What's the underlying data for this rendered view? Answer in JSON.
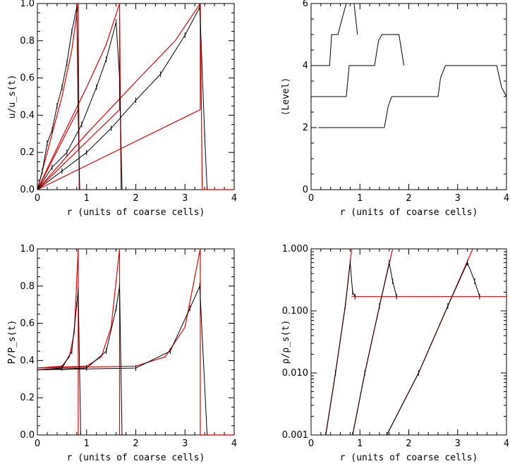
{
  "colors": {
    "simulation": "#000000",
    "analytic": "#e00000"
  },
  "chart_data": [
    {
      "type": "line",
      "xlabel": "r (units of coarse cells)",
      "ylabel": "u/u_s(t)",
      "xlim": [
        0,
        4
      ],
      "ylim": [
        0,
        1
      ],
      "xticks": [
        "0",
        "1",
        "2",
        "3",
        "4"
      ],
      "yticks": [
        "0.0",
        "0.2",
        "0.4",
        "0.6",
        "0.8",
        "1.0"
      ],
      "ytick_values": [
        0,
        0.2,
        0.4,
        0.6,
        0.8,
        1.0
      ],
      "shock_radii": [
        0.83,
        1.67,
        3.31
      ],
      "series": [
        {
          "role": "analytic",
          "x": [
            0,
            0.83,
            0.83,
            0.85
          ],
          "y": [
            0,
            0.43,
            1.0,
            0
          ]
        },
        {
          "role": "analytic",
          "x": [
            0,
            1.67,
            1.67,
            1.7
          ],
          "y": [
            0,
            0.43,
            1.0,
            0
          ]
        },
        {
          "role": "analytic",
          "x": [
            0,
            3.31,
            3.31,
            3.35,
            4.0
          ],
          "y": [
            0,
            0.43,
            1.0,
            0,
            0
          ]
        },
        {
          "role": "analytic",
          "x": [
            0,
            0.3,
            0.5,
            0.7,
            0.83
          ],
          "y": [
            0,
            0.3,
            0.5,
            0.75,
            1.0
          ]
        },
        {
          "role": "analytic",
          "x": [
            0,
            0.5,
            1.0,
            1.4,
            1.67
          ],
          "y": [
            0,
            0.28,
            0.55,
            0.78,
            1.0
          ]
        },
        {
          "role": "analytic",
          "x": [
            0,
            1.0,
            2.0,
            2.8,
            3.31
          ],
          "y": [
            0,
            0.3,
            0.58,
            0.8,
            1.0
          ]
        },
        {
          "role": "simulation",
          "x": [
            0,
            0.1,
            0.2,
            0.3,
            0.4,
            0.5,
            0.6,
            0.7,
            0.8,
            0.83,
            0.86
          ],
          "y": [
            0,
            0.1,
            0.25,
            0.32,
            0.45,
            0.55,
            0.68,
            0.85,
            0.98,
            0.4,
            0
          ]
        },
        {
          "role": "simulation",
          "x": [
            0,
            0.3,
            0.6,
            0.9,
            1.2,
            1.4,
            1.6,
            1.67,
            1.72
          ],
          "y": [
            0,
            0.12,
            0.2,
            0.35,
            0.55,
            0.7,
            0.9,
            0.6,
            0
          ]
        },
        {
          "role": "simulation",
          "x": [
            0,
            0.5,
            1.0,
            1.5,
            2.0,
            2.5,
            3.0,
            3.3,
            3.4,
            3.45
          ],
          "y": [
            0,
            0.1,
            0.2,
            0.33,
            0.48,
            0.62,
            0.83,
            0.98,
            0.3,
            0
          ]
        }
      ]
    },
    {
      "type": "line",
      "xlabel": "r (units of coarse cells)",
      "ylabel": "⟨Level⟩",
      "xlim": [
        0,
        4
      ],
      "ylim": [
        0,
        6
      ],
      "xticks": [
        "0",
        "1",
        "2",
        "3",
        "4"
      ],
      "yticks": [
        "0",
        "2",
        "4",
        "6"
      ],
      "ytick_values": [
        0,
        2,
        4,
        6
      ],
      "series": [
        {
          "role": "simulation",
          "x": [
            0,
            0.38,
            0.42,
            0.48,
            0.55,
            0.65,
            0.72,
            0.8,
            0.88,
            0.95
          ],
          "y": [
            4,
            4,
            5,
            5,
            5,
            5.6,
            6,
            6,
            6,
            5
          ]
        },
        {
          "role": "simulation",
          "x": [
            0,
            0.72,
            0.78,
            0.85,
            1.3,
            1.38,
            1.45,
            1.6,
            1.8,
            1.9
          ],
          "y": [
            3,
            3,
            4,
            4,
            4,
            4.8,
            5,
            5,
            5,
            4
          ]
        },
        {
          "role": "simulation",
          "x": [
            0.15,
            1.5,
            1.58,
            1.65,
            1.75,
            2.6,
            2.65,
            2.75,
            3.5,
            3.8,
            3.9,
            4.0
          ],
          "y": [
            2,
            2,
            2.7,
            3,
            3,
            3,
            3.6,
            4,
            4,
            4,
            3.3,
            3
          ]
        }
      ]
    },
    {
      "type": "line",
      "xlabel": "r (units of coarse cells)",
      "ylabel": "P/P_s(t)",
      "xlim": [
        0,
        4
      ],
      "ylim": [
        0,
        1
      ],
      "xticks": [
        "0",
        "1",
        "2",
        "3",
        "4"
      ],
      "yticks": [
        "0.0",
        "0.2",
        "0.4",
        "0.6",
        "0.8",
        "1.0"
      ],
      "ytick_values": [
        0,
        0.2,
        0.4,
        0.6,
        0.8,
        1.0
      ],
      "series": [
        {
          "role": "analytic",
          "x": [
            0,
            0.5,
            0.65,
            0.75,
            0.83,
            0.83,
            0.85
          ],
          "y": [
            0.36,
            0.37,
            0.42,
            0.55,
            1.0,
            0,
            0
          ]
        },
        {
          "role": "analytic",
          "x": [
            0,
            1.0,
            1.3,
            1.5,
            1.67,
            1.67,
            1.7
          ],
          "y": [
            0.36,
            0.37,
            0.42,
            0.58,
            1.0,
            0,
            0
          ]
        },
        {
          "role": "analytic",
          "x": [
            0,
            2.0,
            2.6,
            3.0,
            3.31,
            3.31,
            3.35,
            4.0
          ],
          "y": [
            0.36,
            0.37,
            0.42,
            0.58,
            1.0,
            0,
            0,
            0
          ]
        },
        {
          "role": "simulation",
          "x": [
            0,
            0.5,
            0.7,
            0.8,
            0.83,
            0.88
          ],
          "y": [
            0.35,
            0.36,
            0.45,
            0.7,
            0.78,
            0
          ]
        },
        {
          "role": "simulation",
          "x": [
            0,
            1.0,
            1.4,
            1.6,
            1.67,
            1.72
          ],
          "y": [
            0.35,
            0.36,
            0.45,
            0.68,
            0.8,
            0
          ]
        },
        {
          "role": "simulation",
          "x": [
            0,
            2.0,
            2.7,
            3.1,
            3.3,
            3.45
          ],
          "y": [
            0.35,
            0.36,
            0.45,
            0.68,
            0.8,
            0
          ]
        }
      ]
    },
    {
      "type": "line",
      "xlabel": "r (units of coarse cells)",
      "ylabel": "ρ/ρ_s(t)",
      "yscale": "log",
      "xlim": [
        0,
        4
      ],
      "ylim": [
        0.001,
        1
      ],
      "xticks": [
        "0",
        "1",
        "2",
        "3",
        "4"
      ],
      "yticks": [
        "0.001",
        "0.010",
        "0.100",
        "1.000"
      ],
      "ytick_values": [
        0.001,
        0.01,
        0.1,
        1.0
      ],
      "ambient_density": 0.17,
      "series": [
        {
          "role": "analytic",
          "x": [
            0.83,
            1.67,
            3.31,
            4.0
          ],
          "y": [
            0.17,
            0.17,
            0.17,
            0.17
          ]
        },
        {
          "role": "analytic",
          "x": [
            0.3,
            0.5,
            0.7,
            0.83
          ],
          "y": [
            0.001,
            0.01,
            0.12,
            1.0
          ]
        },
        {
          "role": "analytic",
          "x": [
            0.85,
            1.1,
            1.4,
            1.67
          ],
          "y": [
            0.001,
            0.01,
            0.12,
            1.0
          ]
        },
        {
          "role": "analytic",
          "x": [
            1.55,
            2.2,
            2.8,
            3.31
          ],
          "y": [
            0.001,
            0.01,
            0.12,
            1.0
          ]
        },
        {
          "role": "simulation",
          "x": [
            0.3,
            0.5,
            0.7,
            0.8,
            0.85,
            0.9
          ],
          "y": [
            0.001,
            0.01,
            0.12,
            0.6,
            0.2,
            0.17
          ]
        },
        {
          "role": "simulation",
          "x": [
            0.85,
            1.1,
            1.4,
            1.6,
            1.67,
            1.75
          ],
          "y": [
            0.001,
            0.01,
            0.12,
            0.6,
            0.3,
            0.17
          ]
        },
        {
          "role": "simulation",
          "x": [
            1.55,
            2.2,
            2.8,
            3.2,
            3.35,
            3.45
          ],
          "y": [
            0.001,
            0.01,
            0.12,
            0.6,
            0.3,
            0.17
          ]
        }
      ]
    }
  ]
}
